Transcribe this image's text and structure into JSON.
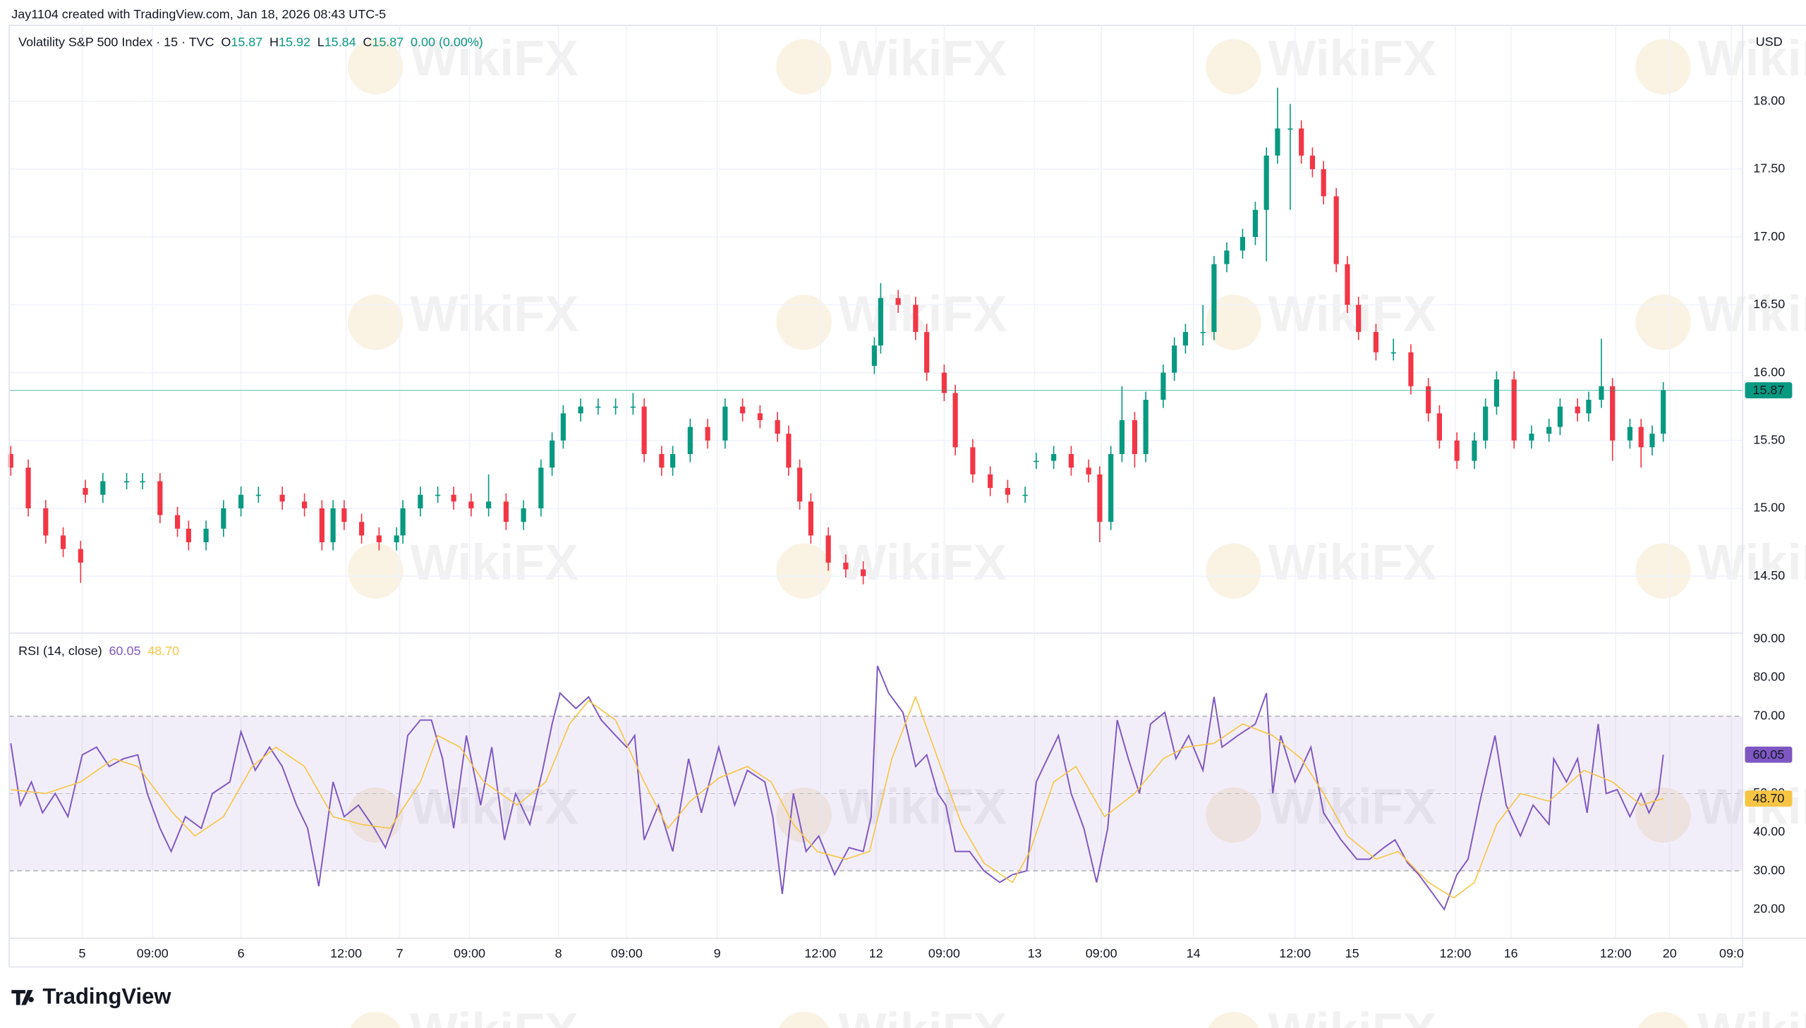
{
  "header": {
    "attribution": "Jay1104 created with TradingView.com, Jan 18, 2026 08:43 UTC-5",
    "watermark": "WikiFX",
    "brand": "TradingView"
  },
  "chart_data": [
    {
      "type": "candlestick",
      "title": "Volatility S&P 500 Index · 15 · TVC",
      "currency": "USD",
      "legend": {
        "open_label": "O",
        "open": 15.87,
        "high_label": "H",
        "high": 15.92,
        "low_label": "L",
        "low": 15.84,
        "close_label": "C",
        "close": 15.87,
        "change": "0.00 (0.00%)"
      },
      "up_color": "#089981",
      "down_color": "#f23645",
      "grid": true,
      "xlim": [
        -0.46,
        10.46
      ],
      "xticks": [
        {
          "value": 0,
          "label": "5"
        },
        {
          "value": 0.443,
          "label": "09:00"
        },
        {
          "value": 1,
          "label": "6"
        },
        {
          "value": 1.662,
          "label": "12:00"
        },
        {
          "value": 2,
          "label": "7"
        },
        {
          "value": 2.44,
          "label": "09:00"
        },
        {
          "value": 3,
          "label": "8"
        },
        {
          "value": 3.43,
          "label": "09:00"
        },
        {
          "value": 4,
          "label": "9"
        },
        {
          "value": 4.65,
          "label": "12:00"
        },
        {
          "value": 5,
          "label": "12"
        },
        {
          "value": 5.43,
          "label": "09:00"
        },
        {
          "value": 6,
          "label": "13"
        },
        {
          "value": 6.42,
          "label": "09:00"
        },
        {
          "value": 7,
          "label": "14"
        },
        {
          "value": 7.64,
          "label": "12:00"
        },
        {
          "value": 8,
          "label": "15"
        },
        {
          "value": 8.65,
          "label": "12:00"
        },
        {
          "value": 9,
          "label": "16"
        },
        {
          "value": 9.66,
          "label": "12:00"
        },
        {
          "value": 10,
          "label": "20"
        },
        {
          "value": 10.39,
          "label": "09:0"
        }
      ],
      "ylim": [
        14.08,
        18.56
      ],
      "yticks": [
        {
          "value": 14.5,
          "label": "14.50"
        },
        {
          "value": 15,
          "label": "15.00"
        },
        {
          "value": 15.5,
          "label": "15.50"
        },
        {
          "value": 16,
          "label": "16.00"
        },
        {
          "value": 16.5,
          "label": "16.50"
        },
        {
          "value": 17,
          "label": "17.00"
        },
        {
          "value": 17.5,
          "label": "17.50"
        },
        {
          "value": 18,
          "label": "18.00"
        }
      ],
      "x": [
        -0.45,
        -0.34,
        -0.23,
        -0.12,
        -0.01,
        0.02,
        0.13,
        0.28,
        0.38,
        0.49,
        0.6,
        0.67,
        0.78,
        0.89,
        1.0,
        1.11,
        1.26,
        1.4,
        1.51,
        1.58,
        1.65,
        1.76,
        1.87,
        1.98,
        2.02,
        2.13,
        2.24,
        2.34,
        2.45,
        2.56,
        2.67,
        2.78,
        2.89,
        2.96,
        3.03,
        3.14,
        3.25,
        3.36,
        3.47,
        3.54,
        3.65,
        3.72,
        3.83,
        3.94,
        4.05,
        4.16,
        4.27,
        4.38,
        4.45,
        4.52,
        4.59,
        4.7,
        4.81,
        4.92,
        4.99,
        5.03,
        5.14,
        5.25,
        5.32,
        5.43,
        5.5,
        5.61,
        5.72,
        5.83,
        5.94,
        6.01,
        6.12,
        6.23,
        6.34,
        6.41,
        6.48,
        6.55,
        6.63,
        6.7,
        6.81,
        6.88,
        6.95,
        7.06,
        7.13,
        7.21,
        7.31,
        7.39,
        7.46,
        7.53,
        7.61,
        7.68,
        7.75,
        7.82,
        7.9,
        7.97,
        8.04,
        8.15,
        8.26,
        8.37,
        8.48,
        8.55,
        8.66,
        8.77,
        8.84,
        8.91,
        9.02,
        9.13,
        9.24,
        9.31,
        9.42,
        9.49,
        9.57,
        9.64,
        9.75,
        9.82,
        9.89,
        9.96
      ],
      "open": [
        15.4,
        15.3,
        15.0,
        14.8,
        14.7,
        15.15,
        15.1,
        15.2,
        15.2,
        15.2,
        14.95,
        14.85,
        14.75,
        14.85,
        15.0,
        15.1,
        15.1,
        15.05,
        15.0,
        14.75,
        15.0,
        14.9,
        14.8,
        14.75,
        14.8,
        15.0,
        15.1,
        15.1,
        15.05,
        15.0,
        15.05,
        14.9,
        15.0,
        15.3,
        15.5,
        15.7,
        15.75,
        15.75,
        15.75,
        15.75,
        15.4,
        15.3,
        15.4,
        15.6,
        15.5,
        15.75,
        15.7,
        15.65,
        15.55,
        15.3,
        15.05,
        14.8,
        14.6,
        14.55,
        16.05,
        16.2,
        16.55,
        16.5,
        16.3,
        16.0,
        15.85,
        15.45,
        15.25,
        15.15,
        15.1,
        15.35,
        15.35,
        15.4,
        15.3,
        15.25,
        14.9,
        15.4,
        15.65,
        15.4,
        15.8,
        16.0,
        16.2,
        16.3,
        16.3,
        16.8,
        16.9,
        17.0,
        17.2,
        17.6,
        17.8,
        17.8,
        17.6,
        17.5,
        17.3,
        16.8,
        16.5,
        16.3,
        16.15,
        16.15,
        15.9,
        15.7,
        15.5,
        15.35,
        15.5,
        15.75,
        15.95,
        15.5,
        15.55,
        15.6,
        15.75,
        15.7,
        15.8,
        15.9,
        15.5,
        15.6,
        15.45,
        15.55
      ],
      "high": [
        15.46,
        15.36,
        15.06,
        14.86,
        14.76,
        15.21,
        15.26,
        15.26,
        15.26,
        15.26,
        15.01,
        14.91,
        14.91,
        15.06,
        15.16,
        15.16,
        15.16,
        15.11,
        15.06,
        15.06,
        15.06,
        14.96,
        14.86,
        14.86,
        15.06,
        15.16,
        15.16,
        15.16,
        15.11,
        15.25,
        15.11,
        15.06,
        15.36,
        15.56,
        15.76,
        15.81,
        15.81,
        15.81,
        15.85,
        15.81,
        15.46,
        15.46,
        15.66,
        15.66,
        15.81,
        15.81,
        15.76,
        15.71,
        15.61,
        15.36,
        15.11,
        14.86,
        14.66,
        14.61,
        16.26,
        16.66,
        16.61,
        16.56,
        16.36,
        16.06,
        15.91,
        15.51,
        15.31,
        15.21,
        15.16,
        15.41,
        15.46,
        15.46,
        15.36,
        15.31,
        15.46,
        15.9,
        15.71,
        15.86,
        16.06,
        16.26,
        16.36,
        16.5,
        16.86,
        16.96,
        17.06,
        17.26,
        17.66,
        18.1,
        17.98,
        17.86,
        17.66,
        17.56,
        17.36,
        16.86,
        16.56,
        16.36,
        16.25,
        16.21,
        15.96,
        15.76,
        15.56,
        15.56,
        15.81,
        16.01,
        16.01,
        15.61,
        15.66,
        15.81,
        15.81,
        15.86,
        16.25,
        15.96,
        15.66,
        15.66,
        15.61,
        15.93
      ],
      "low": [
        15.24,
        14.94,
        14.74,
        14.64,
        14.45,
        15.04,
        15.04,
        15.14,
        15.14,
        14.89,
        14.79,
        14.69,
        14.69,
        14.79,
        14.94,
        15.04,
        14.99,
        14.94,
        14.69,
        14.69,
        14.84,
        14.74,
        14.69,
        14.69,
        14.74,
        14.94,
        15.04,
        14.99,
        14.94,
        14.94,
        14.84,
        14.84,
        14.94,
        15.24,
        15.44,
        15.64,
        15.69,
        15.69,
        15.69,
        15.34,
        15.24,
        15.24,
        15.34,
        15.44,
        15.44,
        15.64,
        15.59,
        15.49,
        15.24,
        14.99,
        14.74,
        14.54,
        14.49,
        14.44,
        15.99,
        16.14,
        16.44,
        16.24,
        15.94,
        15.79,
        15.39,
        15.19,
        15.09,
        15.04,
        15.04,
        15.29,
        15.29,
        15.24,
        15.19,
        14.75,
        14.84,
        15.34,
        15.3,
        15.34,
        15.74,
        15.94,
        16.14,
        16.2,
        16.24,
        16.74,
        16.84,
        16.94,
        16.82,
        17.54,
        17.2,
        17.54,
        17.44,
        17.24,
        16.74,
        16.44,
        16.24,
        16.09,
        16.09,
        15.84,
        15.64,
        15.44,
        15.29,
        15.29,
        15.44,
        15.69,
        15.44,
        15.44,
        15.49,
        15.54,
        15.64,
        15.64,
        15.74,
        15.35,
        15.44,
        15.3,
        15.39,
        15.49
      ],
      "close": [
        15.3,
        15.0,
        14.8,
        14.7,
        14.6,
        15.1,
        15.2,
        15.2,
        15.2,
        14.95,
        14.85,
        14.75,
        14.85,
        15.0,
        15.1,
        15.1,
        15.05,
        15.0,
        14.75,
        15.0,
        14.9,
        14.8,
        14.75,
        14.8,
        15.0,
        15.1,
        15.1,
        15.05,
        15.0,
        15.05,
        14.9,
        15.0,
        15.3,
        15.5,
        15.7,
        15.75,
        15.75,
        15.75,
        15.75,
        15.4,
        15.3,
        15.4,
        15.6,
        15.5,
        15.75,
        15.7,
        15.65,
        15.55,
        15.3,
        15.05,
        14.8,
        14.6,
        14.55,
        14.5,
        16.2,
        16.55,
        16.5,
        16.3,
        16.0,
        15.85,
        15.45,
        15.25,
        15.15,
        15.1,
        15.1,
        15.35,
        15.4,
        15.3,
        15.25,
        14.9,
        15.4,
        15.65,
        15.4,
        15.8,
        16.0,
        16.2,
        16.3,
        16.3,
        16.8,
        16.9,
        17.0,
        17.2,
        17.6,
        17.8,
        17.8,
        17.6,
        17.5,
        17.3,
        16.8,
        16.5,
        16.3,
        16.15,
        16.15,
        15.9,
        15.7,
        15.5,
        15.35,
        15.5,
        15.75,
        15.95,
        15.5,
        15.55,
        15.6,
        15.75,
        15.7,
        15.8,
        15.9,
        15.5,
        15.6,
        15.45,
        15.55,
        15.87
      ]
    },
    {
      "type": "line",
      "title": "RSI (14, close)",
      "legend_values": [
        60.05,
        {
          "value": 48.7,
          "label": "48.70"
        }
      ],
      "xlim": [
        -0.46,
        10.46
      ],
      "ylim": [
        12.56,
        91.5
      ],
      "yticks": [
        {
          "value": 20,
          "label": "20.00"
        },
        {
          "value": 30,
          "label": "30.00"
        },
        {
          "value": 40,
          "label": "40.00"
        },
        {
          "value": 50,
          "label": "50.00"
        },
        {
          "value": 60,
          "label": "60.00"
        },
        {
          "value": 70,
          "label": "70.00"
        },
        {
          "value": 80,
          "label": "80.00"
        },
        {
          "value": 90,
          "label": "90.00"
        }
      ],
      "band": [
        30,
        70
      ],
      "midline": 50,
      "band_color": "#7e57c2",
      "series": [
        {
          "color": "#7e57c2",
          "x": [
            -0.45,
            -0.39,
            -0.32,
            -0.25,
            -0.17,
            -0.09,
            0,
            0.09,
            0.17,
            0.26,
            0.35,
            0.41,
            0.49,
            0.56,
            0.65,
            0.75,
            0.82,
            0.93,
            1.0,
            1.09,
            1.18,
            1.26,
            1.35,
            1.42,
            1.49,
            1.58,
            1.65,
            1.74,
            1.84,
            1.91,
            1.98,
            2.05,
            2.13,
            2.2,
            2.27,
            2.34,
            2.42,
            2.51,
            2.58,
            2.66,
            2.73,
            2.82,
            2.9,
            2.96,
            3.01,
            3.11,
            3.19,
            3.27,
            3.36,
            3.43,
            3.48,
            3.54,
            3.63,
            3.72,
            3.82,
            3.9,
            4.01,
            4.11,
            4.19,
            4.3,
            4.35,
            4.41,
            4.48,
            4.56,
            4.64,
            4.74,
            4.83,
            4.92,
            4.97,
            5.01,
            5.08,
            5.17,
            5.25,
            5.32,
            5.39,
            5.44,
            5.5,
            5.59,
            5.68,
            5.78,
            5.86,
            5.95,
            6.01,
            6.08,
            6.15,
            6.23,
            6.31,
            6.39,
            6.46,
            6.52,
            6.59,
            6.66,
            6.73,
            6.82,
            6.89,
            6.97,
            7.06,
            7.13,
            7.18,
            7.28,
            7.39,
            7.46,
            7.5,
            7.55,
            7.64,
            7.74,
            7.82,
            7.93,
            8.03,
            8.11,
            8.2,
            8.27,
            8.35,
            8.42,
            8.51,
            8.58,
            8.66,
            8.73,
            8.8,
            8.9,
            8.97,
            9.06,
            9.14,
            9.24,
            9.27,
            9.35,
            9.42,
            9.48,
            9.55,
            9.6,
            9.67,
            9.75,
            9.82,
            9.87,
            9.93,
            9.96
          ],
          "values": [
            63,
            47,
            53,
            45,
            50,
            44,
            60,
            62,
            57,
            59,
            60,
            50,
            41,
            35,
            44,
            41,
            50,
            53,
            66,
            56,
            62,
            57,
            47,
            41,
            26,
            53,
            44,
            47,
            41,
            36,
            44,
            65,
            69,
            69,
            59,
            41,
            65,
            47,
            62,
            38,
            50,
            42,
            56,
            68,
            76,
            72,
            75,
            69,
            65,
            62,
            65,
            38,
            47,
            35,
            59,
            45,
            62,
            47,
            56,
            53,
            44,
            24,
            50,
            35,
            39,
            29,
            36,
            35,
            44,
            83,
            76,
            71,
            57,
            60,
            50,
            47,
            35,
            35,
            30,
            27,
            29,
            30,
            53,
            59,
            65,
            50,
            41,
            27,
            41,
            69,
            59,
            50,
            68,
            71,
            59,
            65,
            56,
            75,
            62,
            65,
            68,
            76,
            50,
            65,
            53,
            62,
            45,
            38,
            33,
            33,
            36,
            38,
            32,
            29,
            24,
            20,
            29,
            33,
            47,
            65,
            47,
            39,
            47,
            42,
            59,
            53,
            59,
            45,
            68,
            50,
            51,
            44,
            50,
            45,
            50,
            60.05
          ]
        },
        {
          "color": "#f7c544",
          "x": [
            -0.45,
            -0.23,
            -0.01,
            0.2,
            0.35,
            0.57,
            0.71,
            0.89,
            1.07,
            1.22,
            1.4,
            1.58,
            1.76,
            1.94,
            2.13,
            2.24,
            2.38,
            2.53,
            2.74,
            2.92,
            3.07,
            3.19,
            3.36,
            3.54,
            3.69,
            3.83,
            4.01,
            4.19,
            4.34,
            4.48,
            4.63,
            4.81,
            4.96,
            5.1,
            5.25,
            5.39,
            5.54,
            5.68,
            5.86,
            5.97,
            6.12,
            6.26,
            6.44,
            6.63,
            6.81,
            6.95,
            7.13,
            7.31,
            7.5,
            7.68,
            7.82,
            7.97,
            8.15,
            8.29,
            8.48,
            8.64,
            8.77,
            8.91,
            9.06,
            9.24,
            9.46,
            9.64,
            9.82,
            9.96
          ],
          "values": [
            51,
            50,
            53,
            59,
            57,
            45,
            39,
            44,
            57,
            62,
            57,
            44,
            42,
            41,
            53,
            65,
            62,
            53,
            47,
            53,
            68,
            74,
            69,
            53,
            41,
            48,
            54,
            57,
            53,
            42,
            35,
            33,
            35,
            59,
            75,
            59,
            42,
            32,
            27,
            35,
            53,
            57,
            44,
            50,
            59,
            62,
            63,
            68,
            65,
            59,
            50,
            39,
            33,
            35,
            27,
            23,
            27,
            42,
            50,
            48,
            56,
            53,
            47,
            48.7
          ]
        }
      ]
    }
  ]
}
